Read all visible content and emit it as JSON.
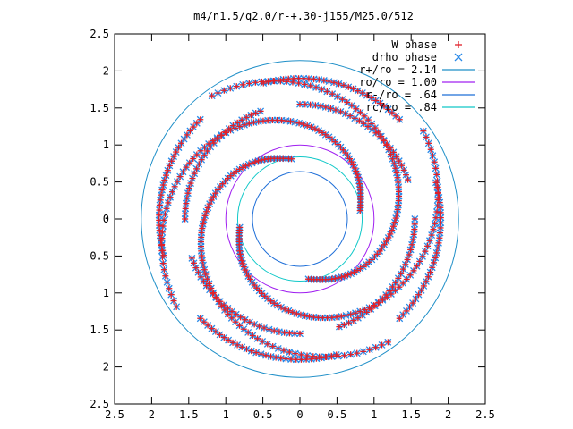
{
  "chart_data": {
    "type": "scatter",
    "title": "m4/n1.5/q2.0/r-+.30-j155/M25.0/512",
    "xlabel": "",
    "ylabel": "",
    "xlim": [
      -2.5,
      2.5
    ],
    "ylim": [
      -2.5,
      2.5
    ],
    "grid": false,
    "legend_placement": "top-right",
    "xticks": [
      -2.5,
      -2,
      -1.5,
      -1,
      -0.5,
      0,
      0.5,
      1,
      1.5,
      2,
      2.5
    ],
    "yticks": [
      -2.5,
      -2,
      -1.5,
      -1,
      -0.5,
      0,
      0.5,
      1,
      1.5,
      2,
      2.5
    ],
    "xtick_labels": [
      "2.5",
      "2",
      "1.5",
      "1",
      "0.5",
      "0",
      "0.5",
      "1",
      "1.5",
      "2",
      "2.5"
    ],
    "ytick_labels": [
      "2.5",
      "2",
      "1.5",
      "1",
      "0.5",
      "0",
      "0.5",
      "1",
      "1.5",
      "2",
      "2.5"
    ],
    "arms": 4,
    "circles": [
      {
        "label": "r+/ro = 2.14",
        "radius": 2.14,
        "color": "#1f8fc8"
      },
      {
        "label": "ro/ro = 1.00",
        "radius": 1.0,
        "color": "#a020f0"
      },
      {
        "label": "r-/ro = .64",
        "radius": 0.64,
        "color": "#1f6fd8"
      },
      {
        "label": "rc/ro = .84",
        "radius": 0.84,
        "color": "#10c8c8"
      }
    ],
    "series": [
      {
        "name": "W phase",
        "marker": "+",
        "color": "#e0202a"
      },
      {
        "name": "drho phase",
        "marker": "x",
        "color": "#2a8ae8"
      }
    ],
    "arm_points": [
      {
        "r": 0.82,
        "theta_deg": 8
      },
      {
        "r": 0.86,
        "theta_deg": 18
      },
      {
        "r": 0.92,
        "theta_deg": 28
      },
      {
        "r": 0.98,
        "theta_deg": 38
      },
      {
        "r": 1.04,
        "theta_deg": 48
      },
      {
        "r": 1.1,
        "theta_deg": 58
      },
      {
        "r": 1.16,
        "theta_deg": 68
      },
      {
        "r": 1.22,
        "theta_deg": 78
      },
      {
        "r": 1.28,
        "theta_deg": 88
      },
      {
        "r": 1.34,
        "theta_deg": 98
      },
      {
        "r": 1.4,
        "theta_deg": 108
      },
      {
        "r": 1.46,
        "theta_deg": 118
      },
      {
        "r": 1.52,
        "theta_deg": 128
      },
      {
        "r": 1.58,
        "theta_deg": 138
      },
      {
        "r": 1.64,
        "theta_deg": 148
      },
      {
        "r": 1.7,
        "theta_deg": 158
      },
      {
        "r": 1.76,
        "theta_deg": 168
      },
      {
        "r": 1.82,
        "theta_deg": 178
      },
      {
        "r": 1.88,
        "theta_deg": 188
      },
      {
        "r": 1.94,
        "theta_deg": 198
      },
      {
        "r": 2.0,
        "theta_deg": 208
      },
      {
        "r": 2.06,
        "theta_deg": 218
      }
    ],
    "rings": [
      {
        "r": 1.55,
        "count": 28,
        "arc_deg": 70,
        "offset_deg": 20
      },
      {
        "r": 1.9,
        "count": 30,
        "arc_deg": 60,
        "offset_deg": 45
      }
    ]
  }
}
